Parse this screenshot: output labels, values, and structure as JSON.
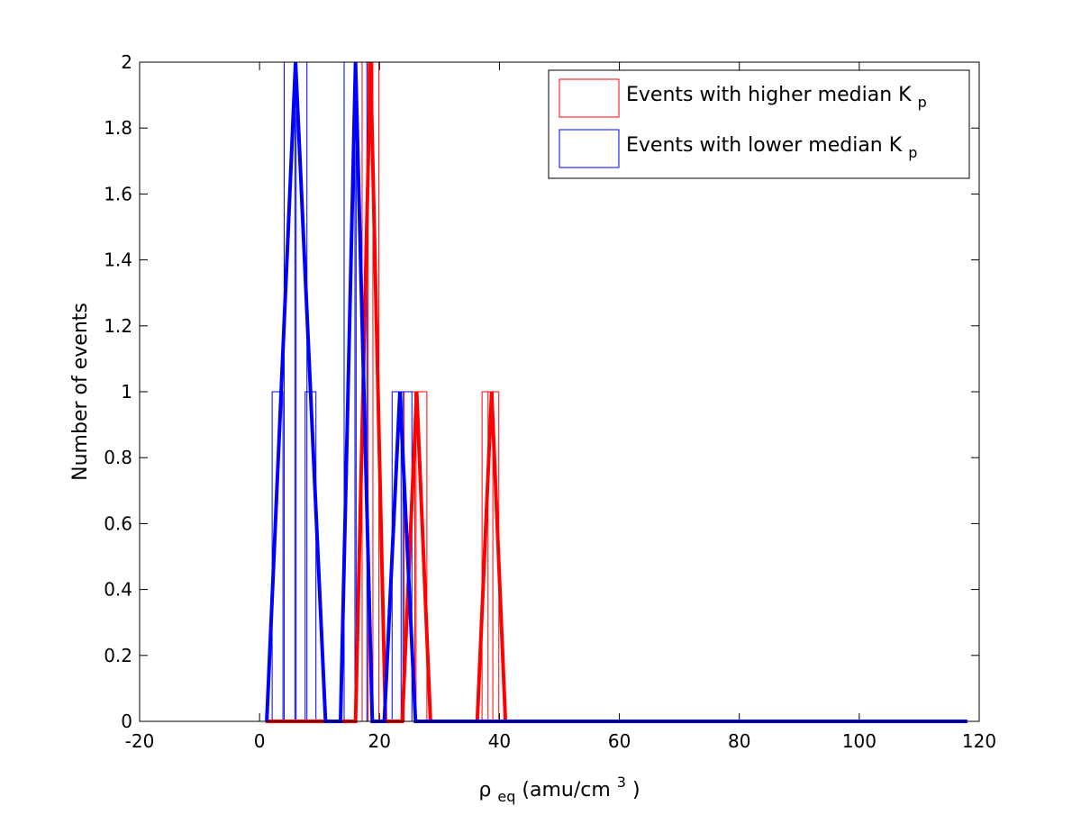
{
  "chart_data": {
    "type": "bar",
    "title": "",
    "xlabel": "ρ",
    "xlabel_sub": "eq",
    "xlabel_unit": " (amu/cm",
    "xlabel_sup": "3",
    "xlabel_close": ")",
    "ylabel": "Number of events",
    "xlim": [
      -20,
      120
    ],
    "ylim": [
      0,
      2
    ],
    "xticks": [
      -20,
      0,
      20,
      40,
      60,
      80,
      100,
      120
    ],
    "yticks": [
      0,
      0.2,
      0.4,
      0.6,
      0.8,
      1,
      1.2,
      1.4,
      1.6,
      1.8,
      2
    ],
    "grid": false,
    "legend_position": "top-right",
    "colors": {
      "higher": "#ff0000",
      "lower": "#0000ff"
    },
    "series": [
      {
        "name": "Events with higher median K",
        "name_sub": "p",
        "color": "#ff0000",
        "bars": [
          {
            "x": 18,
            "value": 2
          },
          {
            "x": 19,
            "value": 2
          },
          {
            "x": 25,
            "value": 1
          },
          {
            "x": 27,
            "value": 1
          },
          {
            "x": 38,
            "value": 1
          },
          {
            "x": 39,
            "value": 1
          }
        ],
        "curve": [
          {
            "x": 1,
            "y": 0
          },
          {
            "x": 16,
            "y": 0
          },
          {
            "x": 18.5,
            "y": 2
          },
          {
            "x": 21,
            "y": 0
          },
          {
            "x": 23.8,
            "y": 0
          },
          {
            "x": 26.2,
            "y": 1
          },
          {
            "x": 28.5,
            "y": 0
          },
          {
            "x": 36.3,
            "y": 0
          },
          {
            "x": 38.7,
            "y": 1
          },
          {
            "x": 41,
            "y": 0
          },
          {
            "x": 118,
            "y": 0
          }
        ]
      },
      {
        "name": "Events with lower median K",
        "name_sub": "p",
        "color": "#0000ff",
        "bars": [
          {
            "x": 3,
            "value": 1
          },
          {
            "x": 5,
            "value": 2
          },
          {
            "x": 7,
            "value": 2
          },
          {
            "x": 8.5,
            "value": 1
          },
          {
            "x": 15,
            "value": 2
          },
          {
            "x": 17,
            "value": 2
          },
          {
            "x": 23,
            "value": 1
          },
          {
            "x": 24.5,
            "value": 1
          }
        ],
        "curve": [
          {
            "x": 1.2,
            "y": 0
          },
          {
            "x": 6,
            "y": 2
          },
          {
            "x": 11,
            "y": 0
          },
          {
            "x": 13.5,
            "y": 0
          },
          {
            "x": 16,
            "y": 2
          },
          {
            "x": 18.8,
            "y": 0
          },
          {
            "x": 20.8,
            "y": 0
          },
          {
            "x": 23.4,
            "y": 1
          },
          {
            "x": 26,
            "y": 0
          },
          {
            "x": 118,
            "y": 0
          }
        ]
      }
    ]
  }
}
